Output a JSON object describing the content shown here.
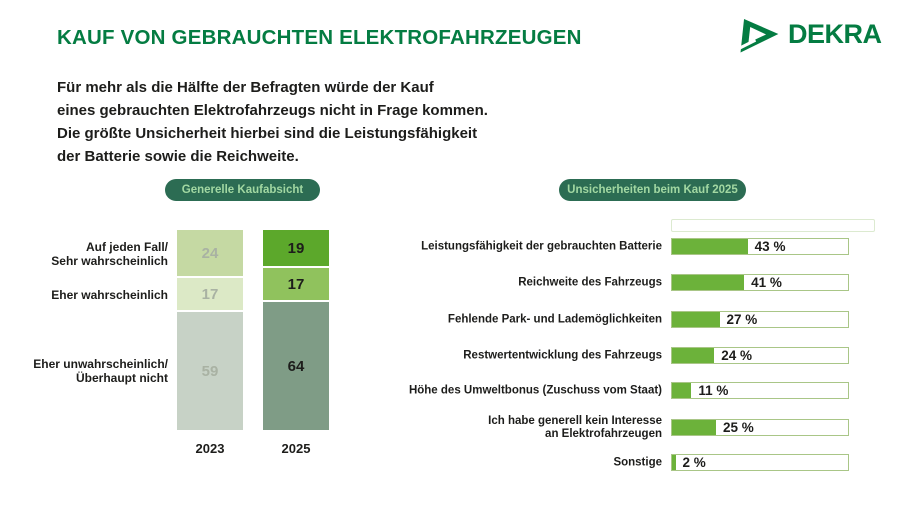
{
  "header": {
    "title": "KAUF VON GEBRAUCHTEN ELEKTROFAHRZEUGEN",
    "logo_text": "DEKRA"
  },
  "intro": {
    "text": "Für mehr als die Hälfte der Befragten würde der Kauf\neines gebrauchten Elektrofahrzeugs nicht in Frage kommen.\nDie größte Unsicherheit hierbei sind die Leistungsfähigkeit\nder Batterie sowie die Reichweite."
  },
  "colors": {
    "brand_green": "#047c42",
    "badge_background": "#2c6c53",
    "badge_text": "#a2d8a2",
    "text_dark": "#1d1d1b"
  },
  "chart_data": [
    {
      "type": "bar",
      "variant": "stacked-column",
      "title": "Generelle Kaufabsicht",
      "categories": [
        "2023",
        "2025"
      ],
      "series": [
        {
          "name": "Auf jeden Fall/\nSehr wahrscheinlich",
          "values": [
            24,
            19
          ]
        },
        {
          "name": "Eher wahrscheinlich",
          "values": [
            17,
            17
          ]
        },
        {
          "name": "Eher unwahrscheinlich/\nÜberhaupt nicht",
          "values": [
            59,
            64
          ]
        }
      ],
      "ylim": [
        0,
        100
      ],
      "segment_colors": {
        "2023": [
          "#c5d9a3",
          "#dcе9c6",
          "#c7d2c6"
        ],
        "2025": [
          "#5ca82b",
          "#90c25d",
          "#7f9c86"
        ]
      },
      "value_label_colors": {
        "2023": "#a9b2a3",
        "2025": "#1d1d1b"
      }
    },
    {
      "type": "bar",
      "variant": "horizontal",
      "title": "Unsicherheiten beim Kauf 2025",
      "categories": [
        "Leistungsfähigkeit der gebrauchten Batterie",
        "Reichweite des Fahrzeugs",
        "Fehlende Park- und Lademöglichkeiten",
        "Restwertentwicklung des Fahrzeugs",
        "Höhe des Umweltbonus (Zuschuss vom Staat)",
        "Ich habe generell kein Interesse\nan Elektrofahrzeugen",
        "Sonstige"
      ],
      "values": [
        43,
        41,
        27,
        24,
        11,
        25,
        2
      ],
      "unit": "%",
      "xlim": [
        0,
        100
      ],
      "bar_color": "#6cb23a",
      "track_border_color": "#a9c687"
    }
  ]
}
